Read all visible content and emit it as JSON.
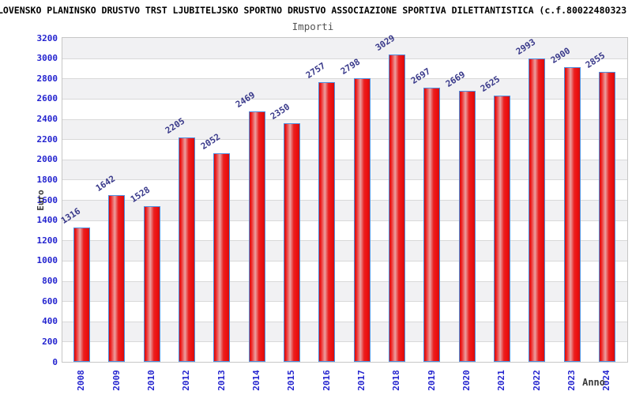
{
  "header": {
    "title": "LOVENSKO PLANINSKO DRUSTVO TRST LJUBITELJSKO SPORTNO DRUSTVO ASSOCIAZIONE SPORTIVA DILETTANTISTICA (c.f.80022480323",
    "subtitle": "Importi"
  },
  "chart_data": {
    "type": "bar",
    "title": "Importi",
    "categories": [
      "2008",
      "2009",
      "2010",
      "2012",
      "2013",
      "2014",
      "2015",
      "2016",
      "2017",
      "2018",
      "2019",
      "2020",
      "2021",
      "2022",
      "2023",
      "2024"
    ],
    "values": [
      1316,
      1642,
      1528,
      2205,
      2052,
      2469,
      2350,
      2757,
      2798,
      3029,
      2697,
      2669,
      2625,
      2993,
      2900,
      2855
    ],
    "xlabel": "Anno",
    "ylabel": "Euro",
    "ylim": [
      0,
      3200
    ],
    "ytick_step": 200,
    "grid": "horizontal-bands-alternating",
    "legend": "none",
    "value_labels_shown": true,
    "value_label_rotation_deg": -33,
    "xtick_rotation_deg": -90
  },
  "colors": {
    "tick_label_blue": "#2424cf",
    "value_label_navy": "#39398a",
    "bar_red": "#ee1111",
    "bar_highlight": "#eb9f9f",
    "bar_border_blue": "#4f8fdf",
    "band_gray": "#f1f1f3",
    "band_white": "#ffffff",
    "gridline": "#d9d9d9",
    "plot_border": "#c6c6c6",
    "title_black": "#000000",
    "subtitle_gray": "#555555",
    "axis_title_gray": "#3a3a3a"
  }
}
